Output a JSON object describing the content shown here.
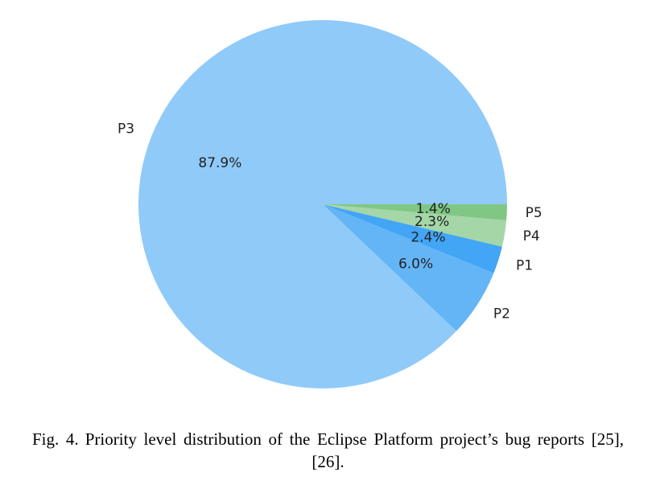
{
  "chart_data": {
    "type": "pie",
    "slices": [
      {
        "label": "P5",
        "value": 1.4,
        "pct_label": "1.4%",
        "color": "#81c784"
      },
      {
        "label": "P4",
        "value": 2.3,
        "pct_label": "2.3%",
        "color": "#a5d6a7"
      },
      {
        "label": "P1",
        "value": 2.4,
        "pct_label": "2.4%",
        "color": "#42a5f5"
      },
      {
        "label": "P2",
        "value": 6.0,
        "pct_label": "6.0%",
        "color": "#64b5f6"
      },
      {
        "label": "P3",
        "value": 87.9,
        "pct_label": "87.9%",
        "color": "#90caf9"
      }
    ],
    "start_angle_deg": 0,
    "direction": "clockwise"
  },
  "caption": {
    "fig_number": "Fig. 4.",
    "text": "Priority level distribution of the Eclipse Platform project’s bug reports [25], [26]."
  }
}
